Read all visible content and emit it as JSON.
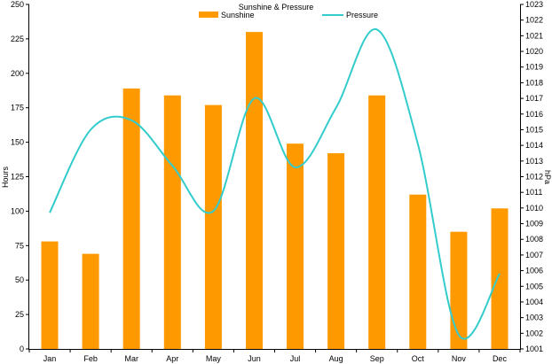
{
  "chart_data": {
    "type": "bar",
    "title": "Sunshine & Pressure",
    "categories": [
      "Jan",
      "Feb",
      "Mar",
      "Apr",
      "May",
      "Jun",
      "Jul",
      "Aug",
      "Sep",
      "Oct",
      "Nov",
      "Dec"
    ],
    "series": [
      {
        "name": "Sunshine",
        "type": "bar",
        "axis": "left",
        "color": "#FF9900",
        "values": [
          78,
          69,
          189,
          184,
          177,
          230,
          149,
          142,
          184,
          112,
          85,
          102
        ]
      },
      {
        "name": "Pressure",
        "type": "line",
        "axis": "right",
        "color": "#33CCCC",
        "smooth": true,
        "values": [
          1009.7,
          1015.0,
          1015.6,
          1012.7,
          1009.8,
          1017.0,
          1012.6,
          1016.4,
          1021.4,
          1014.1,
          1001.9,
          1005.8
        ]
      }
    ],
    "ylabel": "Hours",
    "y2label": "hPa",
    "ylim": [
      0,
      250
    ],
    "yticks": [
      0,
      25,
      50,
      75,
      100,
      125,
      150,
      175,
      200,
      225,
      250
    ],
    "y2lim": [
      1001,
      1023
    ],
    "y2ticks": [
      1001,
      1002,
      1003,
      1004,
      1005,
      1006,
      1007,
      1008,
      1009,
      1010,
      1011,
      1012,
      1013,
      1014,
      1015,
      1016,
      1017,
      1018,
      1019,
      1020,
      1021,
      1022,
      1023
    ],
    "grid": false,
    "legend_position": "top"
  }
}
